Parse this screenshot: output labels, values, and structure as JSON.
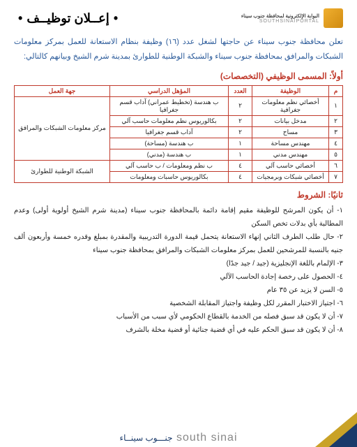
{
  "header": {
    "logo_ar": "البوابة الإلكترونية لمحافظة جنوب سيناء",
    "logo_en": "SOUTHSINAIPORTAL",
    "title": "إعــلان توظيــف"
  },
  "intro": "تعلن محافظة جنوب سيناء عن حاجتها لشغل عدد (١٦) وظيفة بنظام الاستعانة للعمل بمركز معلومات الشبكات والمرافق بمحافظة جنوب سيناء والشبكة الوطنية للطوارئ بمدينة شرم الشيخ وبيانهم كالتالي:",
  "sections": {
    "jobs_heading": "أولاً: المسمى الوظيفي (التخصصات)",
    "conditions_heading": "ثانيًا: الشروط"
  },
  "table": {
    "headers": {
      "m": "م",
      "job": "الوظيفة",
      "count": "العدد",
      "qual": "المؤهل الدراسي",
      "dept": "جهة العمل"
    },
    "depts": {
      "a": "مركز معلومات الشبكات والمرافق",
      "b": "الشبكة الوطنية للطوارئ"
    },
    "rows": [
      {
        "m": "١",
        "job": "أخصائي نظم معلومات جغرافية",
        "count": "٢",
        "qual": "ب هندسة (تخطيط عمراني) آداب قسم جغرافيا"
      },
      {
        "m": "٢",
        "job": "مدخل بيانات",
        "count": "٢",
        "qual": "بكالوريوس نظم معلومات حاسب آلي"
      },
      {
        "m": "٣",
        "job": "مساح",
        "count": "٢",
        "qual": "آداب قسم جغرافيا"
      },
      {
        "m": "٤",
        "job": "مهندس مساحة",
        "count": "١",
        "qual": "ب هندسة (مساحة)"
      },
      {
        "m": "٥",
        "job": "مهندس مدني",
        "count": "١",
        "qual": "ب هندسة (مدني)"
      },
      {
        "m": "٦",
        "job": "أخصائي حاسب آلي",
        "count": "٤",
        "qual": "ب نظم ومعلومات / ب حاسب آلي"
      },
      {
        "m": "٧",
        "job": "أخصائي شبكات وبرمجيات",
        "count": "٤",
        "qual": "بكالوريوس حاسبات ومعلومات"
      }
    ]
  },
  "conditions": [
    "١- أن يكون المرشح للوظيفة مقيم إقامة دائمة بالمحافظة جنوب سيناء (مدينة شرم الشيخ أولوية أولى) وعدم المطالبة بأي بدلات تخص السكن",
    "٢- حال طلب الطرف الثاني إنهاء الاستعانة يتحمل قيمة الدورة التدريبية والمقدرة بمبلغ وقدره خمسة وأربعون ألف جنيه بالنسبة للمرشحين للعمل بمركز معلومات الشبكات والمرافق بمحافظة جنوب سيناء",
    "٣- الإلمام باللغة الإنجليزية (جيد / جيد جدًا)",
    "٤- الحصول على رخصة إجادة الحاسب الآلي",
    "٥- السن لا يزيد عن ٣٥ عام",
    "٦- اجتياز الاختبار المقرر لكل وظيفة واجتياز المقابلة الشخصية",
    "٧- أن لا يكون قد سبق فصله من الخدمة بالقطاع الحكومي لأي سبب من الأسباب",
    "٨- أن لا يكون قد سبق الحكم عليه في أي قضية جنائية أو قضية مخلة بالشرف"
  ],
  "footer": {
    "brand_en": "south sinai",
    "brand_extra": "جنـــوب سينــاء"
  },
  "colors": {
    "intro_text": "#2a5a9a",
    "accent": "#c0392b",
    "gold": "#c9a227",
    "navy": "#1a3a6a"
  }
}
